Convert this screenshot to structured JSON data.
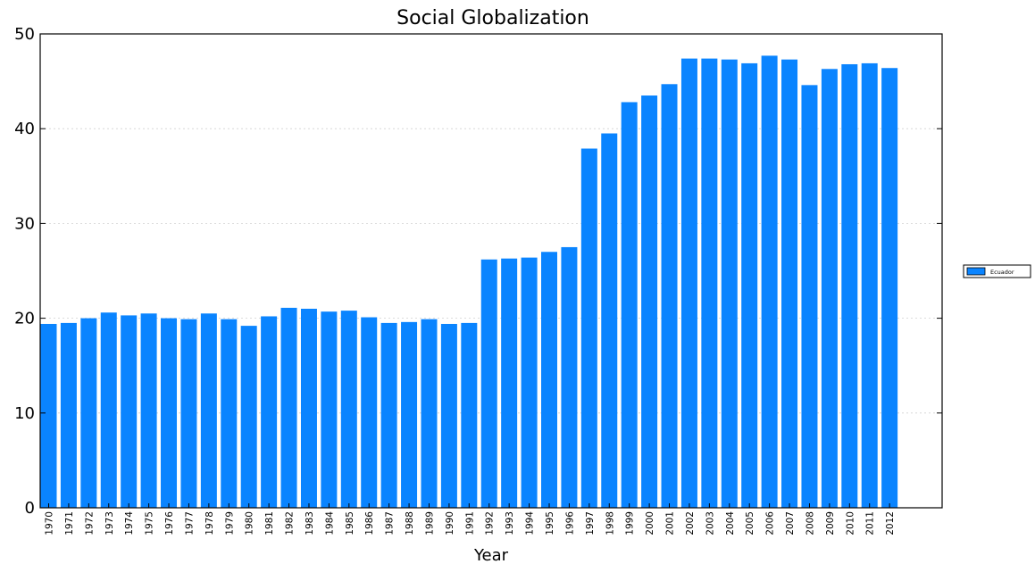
{
  "chart_data": {
    "type": "bar",
    "title": "Social Globalization",
    "xlabel": "Year",
    "ylabel": "",
    "ylim": [
      0,
      50
    ],
    "yticks": [
      0,
      10,
      20,
      30,
      40,
      50
    ],
    "grid": "y-dotted",
    "legend_position": "right",
    "categories": [
      "1970",
      "1971",
      "1972",
      "1973",
      "1974",
      "1975",
      "1976",
      "1977",
      "1978",
      "1979",
      "1980",
      "1981",
      "1982",
      "1983",
      "1984",
      "1985",
      "1986",
      "1987",
      "1988",
      "1989",
      "1990",
      "1991",
      "1992",
      "1993",
      "1994",
      "1995",
      "1996",
      "1997",
      "1998",
      "1999",
      "2000",
      "2001",
      "2002",
      "2003",
      "2004",
      "2005",
      "2006",
      "2007",
      "2008",
      "2009",
      "2010",
      "2011",
      "2012"
    ],
    "series": [
      {
        "name": "Ecuador",
        "color": "#0a84ff",
        "values": [
          19.4,
          19.5,
          20.0,
          20.6,
          20.3,
          20.5,
          20.0,
          19.9,
          20.5,
          19.9,
          19.2,
          20.2,
          21.1,
          21.0,
          20.7,
          20.8,
          20.1,
          19.5,
          19.6,
          19.9,
          19.4,
          19.5,
          26.2,
          26.3,
          26.4,
          27.0,
          27.5,
          37.9,
          39.5,
          42.8,
          43.5,
          44.7,
          47.4,
          47.4,
          47.3,
          46.9,
          47.7,
          47.3,
          44.6,
          46.3,
          46.8,
          46.9,
          46.4
        ]
      }
    ]
  }
}
